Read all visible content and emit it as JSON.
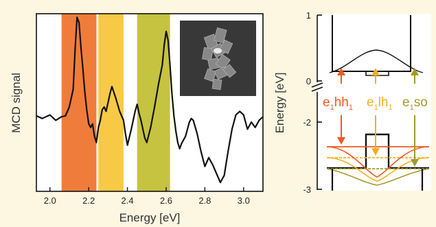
{
  "chart_data": [
    {
      "type": "line",
      "title": "",
      "xlabel": "Energy [eV]",
      "ylabel": "MCD signal",
      "xlim": [
        1.93,
        3.1
      ],
      "ylim": [
        -1.0,
        1.0
      ],
      "y_ticks_shown": false,
      "x_ticks": [
        "2.0",
        "2.2",
        "2.4",
        "2.6",
        "2.8",
        "3.0"
      ],
      "series": [
        {
          "color": "#111111",
          "x": [
            1.93,
            1.96,
            2.0,
            2.03,
            2.06,
            2.08,
            2.1,
            2.12,
            2.13,
            2.14,
            2.15,
            2.16,
            2.17,
            2.18,
            2.19,
            2.2,
            2.21,
            2.22,
            2.23,
            2.24,
            2.25,
            2.26,
            2.27,
            2.28,
            2.29,
            2.3,
            2.31,
            2.32,
            2.34,
            2.36,
            2.38,
            2.39,
            2.4,
            2.42,
            2.44,
            2.45,
            2.46,
            2.47,
            2.48,
            2.49,
            2.5,
            2.52,
            2.54,
            2.56,
            2.58,
            2.59,
            2.6,
            2.61,
            2.62,
            2.63,
            2.64,
            2.65,
            2.66,
            2.67,
            2.68,
            2.7,
            2.72,
            2.73,
            2.74,
            2.76,
            2.78,
            2.8,
            2.82,
            2.84,
            2.86,
            2.88,
            2.9,
            2.92,
            2.94,
            2.96,
            2.98,
            3.0,
            3.02,
            3.04,
            3.06,
            3.08,
            3.1
          ],
          "values": [
            -0.15,
            -0.18,
            -0.14,
            -0.2,
            -0.16,
            -0.15,
            -0.05,
            0.15,
            0.6,
            0.96,
            0.9,
            0.62,
            0.38,
            0.12,
            -0.08,
            -0.24,
            -0.28,
            -0.24,
            -0.38,
            -0.45,
            -0.28,
            -0.2,
            -0.08,
            -0.05,
            -0.1,
            0.0,
            0.1,
            0.18,
            0.05,
            -0.1,
            -0.2,
            -0.35,
            -0.48,
            -0.3,
            -0.1,
            -0.02,
            -0.12,
            -0.2,
            -0.3,
            -0.4,
            -0.45,
            -0.28,
            -0.05,
            0.2,
            0.42,
            0.65,
            0.8,
            0.7,
            0.42,
            0.1,
            -0.15,
            -0.32,
            -0.45,
            -0.52,
            -0.46,
            -0.38,
            -0.22,
            -0.18,
            -0.2,
            -0.35,
            -0.55,
            -0.72,
            -0.62,
            -0.7,
            -0.8,
            -0.9,
            -0.82,
            -0.55,
            -0.3,
            -0.14,
            -0.1,
            -0.14,
            -0.3,
            -0.22,
            -0.28,
            -0.2,
            -0.16
          ]
        }
      ],
      "shaded_regions": [
        {
          "x_range": [
            2.06,
            2.24
          ],
          "color": "#f07c3c"
        },
        {
          "x_range": [
            2.25,
            2.38
          ],
          "color": "#f7c945"
        },
        {
          "x_range": [
            2.45,
            2.62
          ],
          "color": "#c5c33f"
        }
      ],
      "inset": "micrograph of nanoplatelets"
    },
    {
      "type": "diagram",
      "ylabel": "Energy [eV]",
      "y_ticks": [
        "1",
        "0",
        "-2",
        "-3"
      ],
      "axis_break": true,
      "transitions": [
        {
          "label": "e",
          "sub1": "1",
          "main": "hh",
          "sub2": "1",
          "color": "#f05a1e"
        },
        {
          "label": "e",
          "sub1": "1",
          "main": "lh",
          "sub2": "1",
          "color": "#f0b020"
        },
        {
          "label": "e",
          "sub1": "1",
          "main": "so",
          "sub2": "",
          "color": "#a29a2c"
        }
      ]
    }
  ]
}
